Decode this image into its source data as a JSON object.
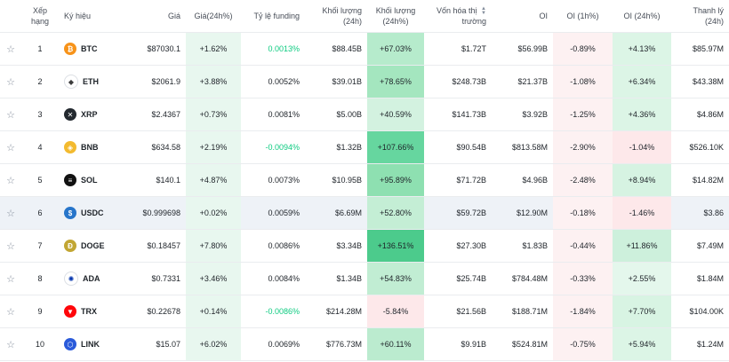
{
  "headers": {
    "rank": "Xếp hạng",
    "symbol": "Ký hiệu",
    "price": "Giá",
    "change24h": "Giá(24h%)",
    "funding": "Tỷ lệ funding",
    "volume": "Khối lượng (24h)",
    "volume_change": "Khối lượng (24h%)",
    "market_cap_line1": "Vốn hóa thị",
    "market_cap_line2": "trường",
    "oi": "OI",
    "oi_1h": "OI (1h%)",
    "oi_24h": "OI (24h%)",
    "liquidation": "Thanh lý (24h)"
  },
  "icons": {
    "favorite": "star-outline-icon",
    "sort": "sort-arrows-icon"
  },
  "cell_colors": {
    "change_fill": "#e8f7ef",
    "strong_green": "#66d69f",
    "mid_green": "#b6ebcc",
    "light_green": "#dcf5e6",
    "light_red": "#fde8ea",
    "pale_red": "#fdf1f2"
  },
  "rows": [
    {
      "rank": "1",
      "symbol": "BTC",
      "icon": "btc-icon",
      "icon_color": "#f7931a",
      "icon_glyph": "₿",
      "price": "$87030.1",
      "change": "+1.62%",
      "funding": "0.0013%",
      "funding_tone": "pos",
      "volume": "$88.45B",
      "volume_change": "+67.03%",
      "vol_color": "#b6ebcc",
      "market_cap": "$1.72T",
      "oi": "$56.99B",
      "oi_1h": "-0.89%",
      "oi_1h_color": "#fdf1f2",
      "oi_24h": "+4.13%",
      "oi_24h_color": "#dcf5e6",
      "liquidation": "$85.97M"
    },
    {
      "rank": "2",
      "symbol": "ETH",
      "icon": "eth-icon",
      "icon_color": "#ffffff",
      "icon_glyph": "◆",
      "price": "$2061.9",
      "change": "+3.88%",
      "funding": "0.0052%",
      "funding_tone": "",
      "volume": "$39.01B",
      "volume_change": "+78.65%",
      "vol_color": "#a4e6bf",
      "market_cap": "$248.73B",
      "oi": "$21.37B",
      "oi_1h": "-1.08%",
      "oi_1h_color": "#fdf1f2",
      "oi_24h": "+6.34%",
      "oi_24h_color": "#dcf5e6",
      "liquidation": "$43.38M"
    },
    {
      "rank": "3",
      "symbol": "XRP",
      "icon": "xrp-icon",
      "icon_color": "#23292f",
      "icon_glyph": "✕",
      "price": "$2.4367",
      "change": "+0.73%",
      "funding": "0.0081%",
      "funding_tone": "",
      "volume": "$5.00B",
      "volume_change": "+40.59%",
      "vol_color": "#d3f2e0",
      "market_cap": "$141.73B",
      "oi": "$3.92B",
      "oi_1h": "-1.25%",
      "oi_1h_color": "#fdf1f2",
      "oi_24h": "+4.36%",
      "oi_24h_color": "#dcf5e6",
      "liquidation": "$4.86M"
    },
    {
      "rank": "4",
      "symbol": "BNB",
      "icon": "bnb-icon",
      "icon_color": "#f3ba2f",
      "icon_glyph": "◈",
      "price": "$634.58",
      "change": "+2.19%",
      "funding": "-0.0094%",
      "funding_tone": "pos",
      "volume": "$1.32B",
      "volume_change": "+107.66%",
      "vol_color": "#66d69f",
      "market_cap": "$90.54B",
      "oi": "$813.58M",
      "oi_1h": "-2.90%",
      "oi_1h_color": "#fdf1f2",
      "oi_24h": "-1.04%",
      "oi_24h_color": "#fde8ea",
      "liquidation": "$526.10K"
    },
    {
      "rank": "5",
      "symbol": "SOL",
      "icon": "sol-icon",
      "icon_color": "#111111",
      "icon_glyph": "≡",
      "price": "$140.1",
      "change": "+4.87%",
      "funding": "0.0073%",
      "funding_tone": "",
      "volume": "$10.95B",
      "volume_change": "+95.89%",
      "vol_color": "#8ee0b1",
      "market_cap": "$71.72B",
      "oi": "$4.96B",
      "oi_1h": "-2.48%",
      "oi_1h_color": "#fdf1f2",
      "oi_24h": "+8.94%",
      "oi_24h_color": "#d6f3e2",
      "liquidation": "$14.82M"
    },
    {
      "rank": "6",
      "symbol": "USDC",
      "icon": "usdc-icon",
      "icon_color": "#2775ca",
      "icon_glyph": "$",
      "price": "$0.999698",
      "change": "+0.02%",
      "funding": "0.0059%",
      "funding_tone": "",
      "volume": "$6.69M",
      "volume_change": "+52.80%",
      "vol_color": "#c4eed5",
      "market_cap": "$59.72B",
      "oi": "$12.90M",
      "oi_1h": "-0.18%",
      "oi_1h_color": "#fdf1f2",
      "oi_24h": "-1.46%",
      "oi_24h_color": "#fde8ea",
      "liquidation": "$3.86",
      "highlight": true
    },
    {
      "rank": "7",
      "symbol": "DOGE",
      "icon": "doge-icon",
      "icon_color": "#c2a633",
      "icon_glyph": "Ð",
      "price": "$0.18457",
      "change": "+7.80%",
      "funding": "0.0086%",
      "funding_tone": "",
      "volume": "$3.34B",
      "volume_change": "+136.51%",
      "vol_color": "#4ccb8c",
      "market_cap": "$27.30B",
      "oi": "$1.83B",
      "oi_1h": "-0.44%",
      "oi_1h_color": "#fdf1f2",
      "oi_24h": "+11.86%",
      "oi_24h_color": "#cdf0dc",
      "liquidation": "$7.49M"
    },
    {
      "rank": "8",
      "symbol": "ADA",
      "icon": "ada-icon",
      "icon_color": "#ffffff",
      "icon_glyph": "✺",
      "price": "$0.7331",
      "change": "+3.46%",
      "funding": "0.0084%",
      "funding_tone": "",
      "volume": "$1.34B",
      "volume_change": "+54.83%",
      "vol_color": "#c1edd3",
      "market_cap": "$25.74B",
      "oi": "$784.48M",
      "oi_1h": "-0.33%",
      "oi_1h_color": "#fdf1f2",
      "oi_24h": "+2.55%",
      "oi_24h_color": "#e4f7ec",
      "liquidation": "$1.84M"
    },
    {
      "rank": "9",
      "symbol": "TRX",
      "icon": "trx-icon",
      "icon_color": "#ff060a",
      "icon_glyph": "▼",
      "price": "$0.22678",
      "change": "+0.14%",
      "funding": "-0.0086%",
      "funding_tone": "pos",
      "volume": "$214.28M",
      "volume_change": "-5.84%",
      "vol_color": "#fde8ea",
      "market_cap": "$21.56B",
      "oi": "$188.71M",
      "oi_1h": "-1.84%",
      "oi_1h_color": "#fdf1f2",
      "oi_24h": "+7.70%",
      "oi_24h_color": "#d8f4e3",
      "liquidation": "$104.00K"
    },
    {
      "rank": "10",
      "symbol": "LINK",
      "icon": "link-icon",
      "icon_color": "#2a5ada",
      "icon_glyph": "⬡",
      "price": "$15.07",
      "change": "+6.02%",
      "funding": "0.0069%",
      "funding_tone": "",
      "volume": "$776.73M",
      "volume_change": "+60.11%",
      "vol_color": "#bbebcf",
      "market_cap": "$9.91B",
      "oi": "$524.81M",
      "oi_1h": "-0.75%",
      "oi_1h_color": "#fdf1f2",
      "oi_24h": "+5.94%",
      "oi_24h_color": "#dcf5e6",
      "liquidation": "$1.24M"
    }
  ]
}
